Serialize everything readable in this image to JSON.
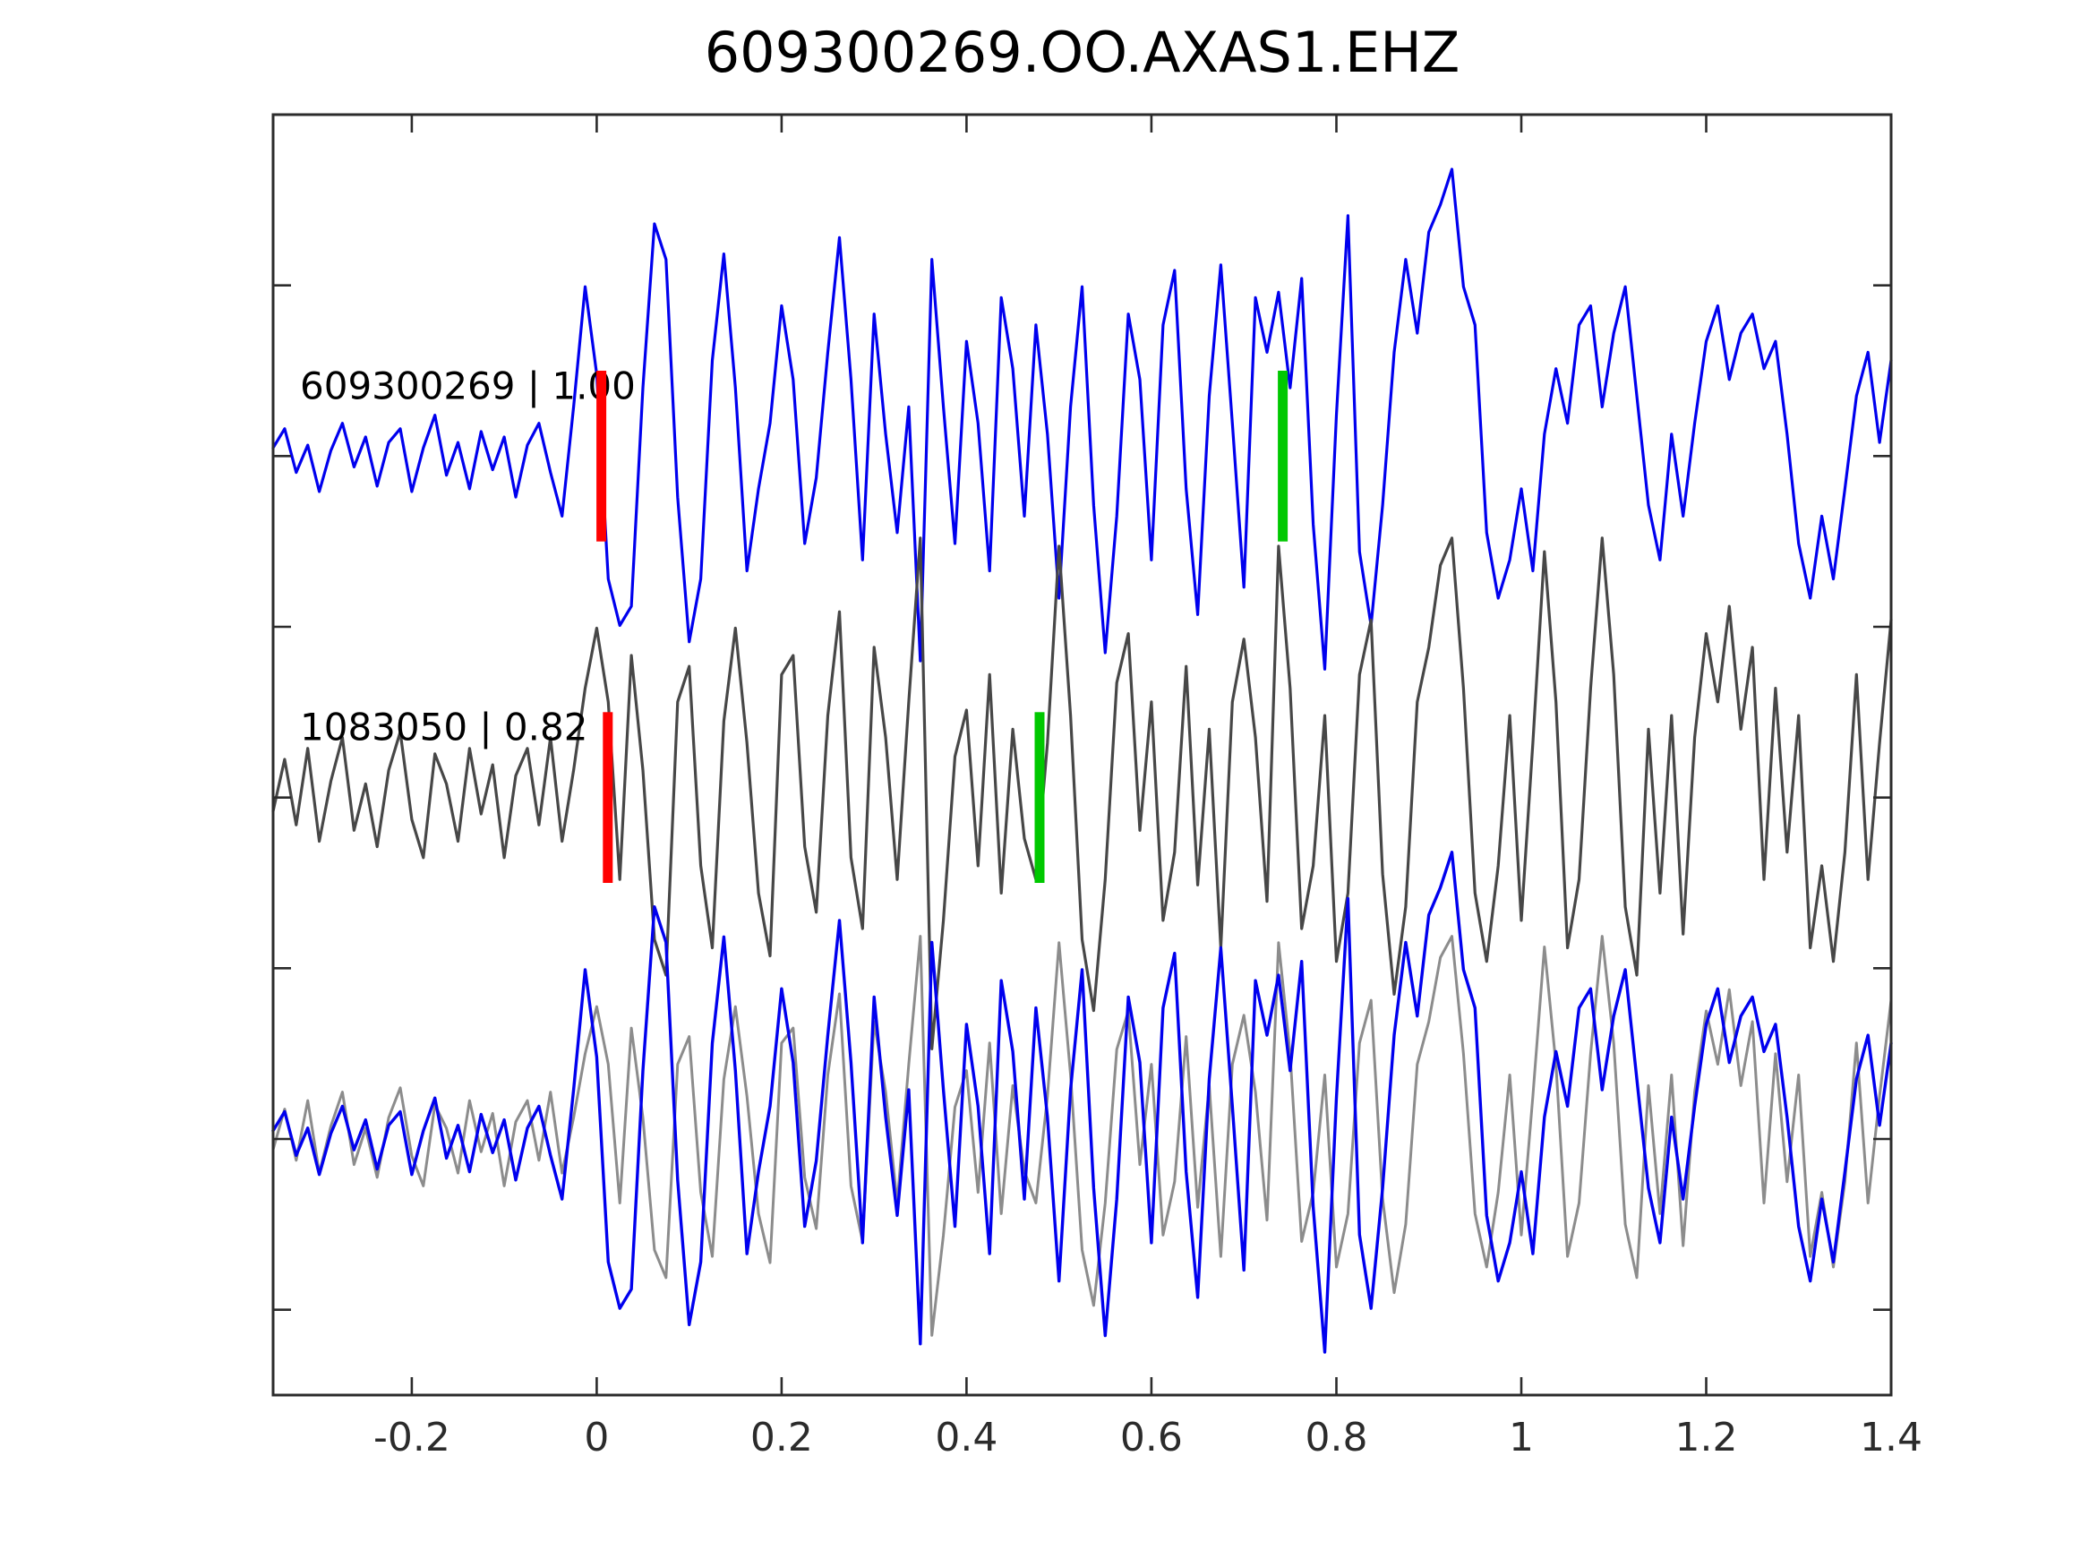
{
  "chart_data": {
    "type": "line",
    "title": "609300269.OO.AXAS1.EHZ",
    "xlabel": "",
    "ylabel": "",
    "grid": false,
    "legend": "none",
    "xlim": [
      -0.35,
      1.4
    ],
    "ylim": [
      -3.5,
      4
    ],
    "x_ticks": [
      -0.2,
      0,
      0.2,
      0.4,
      0.6,
      0.8,
      1,
      1.2,
      1.4
    ],
    "x_tick_labels": [
      "-0.2",
      "0",
      "0.2",
      "0.4",
      "0.6",
      "0.8",
      "1",
      "1.2",
      "1.4"
    ],
    "y_ticks": [
      3,
      2,
      1,
      0,
      -1,
      -2,
      -3
    ],
    "y_tick_labels": [
      "",
      "",
      "",
      "",
      "",
      "",
      ""
    ],
    "tick_style": "inward-all-sides",
    "sampling": {
      "t0": -0.35,
      "dt": 0.0125
    },
    "pick_half_height": 0.5,
    "colors": {
      "template_line": "#0000ee",
      "detection_line": "#474747",
      "overlay_detection_line": "#8c8c8c",
      "pick_red": "#ff0000",
      "pick_green": "#00c800",
      "axis": "#2b2b2b",
      "background": "#ffffff"
    },
    "waveforms": {
      "template": [
        0.03,
        0.1,
        -0.06,
        0.04,
        -0.13,
        0.02,
        0.12,
        -0.04,
        0.07,
        -0.11,
        0.05,
        0.1,
        -0.13,
        0.03,
        0.15,
        -0.07,
        0.05,
        -0.12,
        0.09,
        -0.05,
        0.07,
        -0.15,
        0.04,
        0.12,
        -0.06,
        -0.22,
        0.18,
        0.62,
        0.3,
        -0.45,
        -0.62,
        -0.55,
        0.25,
        0.85,
        0.72,
        -0.15,
        -0.68,
        -0.45,
        0.35,
        0.74,
        0.25,
        -0.42,
        -0.12,
        0.12,
        0.55,
        0.28,
        -0.32,
        -0.08,
        0.38,
        0.8,
        0.28,
        -0.38,
        0.52,
        0.08,
        -0.28,
        0.18,
        -0.75,
        0.72,
        0.18,
        -0.32,
        0.42,
        0.12,
        -0.42,
        0.58,
        0.32,
        -0.22,
        0.48,
        0.08,
        -0.52,
        0.18,
        0.62,
        -0.18,
        -0.72,
        -0.22,
        0.52,
        0.28,
        -0.38,
        0.48,
        0.68,
        -0.12,
        -0.58,
        0.22,
        0.7,
        0.12,
        -0.48,
        0.58,
        0.38,
        0.6,
        0.25,
        0.65,
        -0.25,
        -0.78,
        0.15,
        0.88,
        -0.35,
        -0.62,
        -0.18,
        0.38,
        0.72,
        0.45,
        0.82,
        0.92,
        1.05,
        0.62,
        0.48,
        -0.28,
        -0.52,
        -0.38,
        -0.12,
        -0.42,
        0.08,
        0.32,
        0.12,
        0.48,
        0.55,
        0.18,
        0.45,
        0.62,
        0.22,
        -0.18,
        -0.38,
        0.08,
        -0.22,
        0.12,
        0.42,
        0.55,
        0.28,
        0.45,
        0.52,
        0.32,
        0.42,
        0.08,
        -0.32,
        -0.52,
        -0.22,
        -0.45,
        -0.12,
        0.22,
        0.38,
        0.05,
        0.35
      ],
      "detection": [
        -0.05,
        0.14,
        -0.1,
        0.18,
        -0.16,
        0.06,
        0.22,
        -0.12,
        0.05,
        -0.18,
        0.1,
        0.24,
        -0.08,
        -0.22,
        0.16,
        0.05,
        -0.16,
        0.18,
        -0.06,
        0.12,
        -0.22,
        0.08,
        0.18,
        -0.1,
        0.22,
        -0.16,
        0.1,
        0.4,
        0.62,
        0.35,
        -0.3,
        0.52,
        0.1,
        -0.52,
        -0.65,
        0.35,
        0.48,
        -0.25,
        -0.55,
        0.28,
        0.62,
        0.2,
        -0.35,
        -0.58,
        0.45,
        0.52,
        -0.18,
        -0.42,
        0.3,
        0.68,
        -0.22,
        -0.48,
        0.55,
        0.22,
        -0.3,
        0.35,
        0.95,
        -0.92,
        -0.45,
        0.15,
        0.32,
        -0.25,
        0.45,
        -0.35,
        0.25,
        -0.15,
        -0.3,
        0.2,
        0.92,
        0.3,
        -0.52,
        -0.78,
        -0.3,
        0.42,
        0.6,
        -0.12,
        0.35,
        -0.45,
        -0.2,
        0.48,
        -0.32,
        0.25,
        -0.55,
        0.35,
        0.58,
        0.22,
        -0.38,
        0.92,
        0.4,
        -0.48,
        -0.25,
        0.3,
        -0.6,
        -0.35,
        0.45,
        0.65,
        -0.28,
        -0.72,
        -0.4,
        0.35,
        0.55,
        0.85,
        0.95,
        0.4,
        -0.35,
        -0.6,
        -0.25,
        0.3,
        -0.45,
        0.2,
        0.9,
        0.35,
        -0.55,
        -0.3,
        0.4,
        0.95,
        0.45,
        -0.4,
        -0.65,
        0.25,
        -0.35,
        0.3,
        -0.5,
        0.22,
        0.6,
        0.35,
        0.7,
        0.25,
        0.55,
        -0.3,
        0.4,
        -0.2,
        0.3,
        -0.55,
        -0.25,
        -0.6,
        -0.2,
        0.45,
        -0.3,
        0.2,
        0.65
      ]
    },
    "traces": [
      {
        "name": "template-trace",
        "label": "609300269 | 1.00",
        "waveform": "detection_is_not_used_here",
        "source": "template",
        "color": "#0000ee",
        "offset": 2,
        "scale": 1.6,
        "linewidth": 3.2,
        "picks": [
          {
            "time": 0.005,
            "color": "#ff0000"
          },
          {
            "time": 0.742,
            "color": "#00c800"
          }
        ]
      },
      {
        "name": "detection-trace",
        "label": "1083050 | 0.82",
        "source": "detection",
        "color": "#474747",
        "offset": 0,
        "scale": 1.6,
        "linewidth": 3.2,
        "picks": [
          {
            "time": 0.012,
            "color": "#ff0000"
          },
          {
            "time": 0.479,
            "color": "#00c800"
          }
        ]
      },
      {
        "name": "overlay-detection-trace",
        "label": "",
        "source": "detection",
        "color": "#8c8c8c",
        "offset": -2,
        "scale": 1.25,
        "linewidth": 3,
        "picks": []
      },
      {
        "name": "overlay-template-trace",
        "label": "",
        "source": "template",
        "color": "#0000ee",
        "offset": -2,
        "scale": 1.6,
        "linewidth": 3.4,
        "picks": []
      }
    ]
  }
}
